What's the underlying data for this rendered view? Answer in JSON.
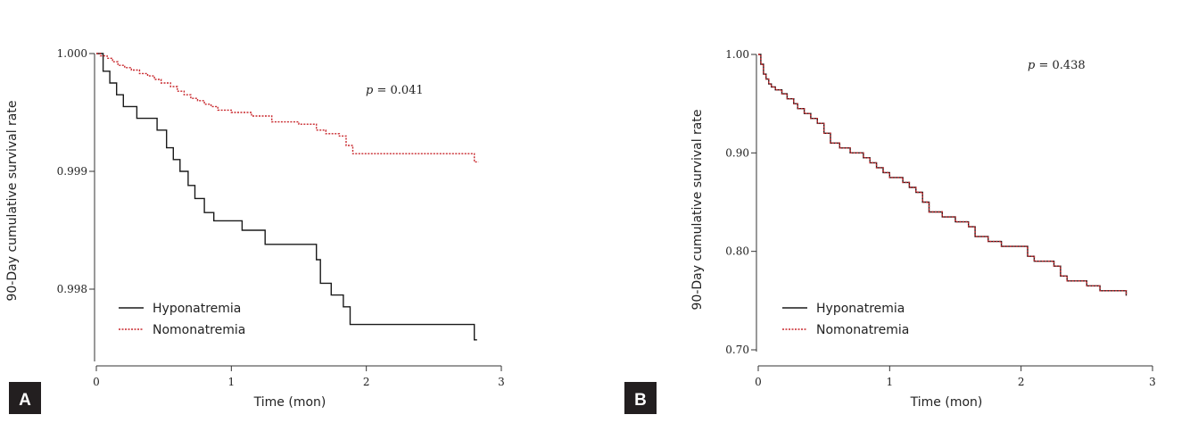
{
  "chart_data": [
    {
      "panel": "A",
      "type": "line",
      "step": true,
      "xlabel": "Time (mon)",
      "ylabel": "90-Day cumulative survival rate",
      "xlim": [
        0,
        3
      ],
      "ylim": [
        0.9975,
        1.0
      ],
      "xticks": [
        "0",
        "1",
        "2",
        "3"
      ],
      "yticks": [
        {
          "v": 1.0,
          "label": "1.000"
        },
        {
          "v": 0.999,
          "label": "0.999"
        },
        {
          "v": 0.998,
          "label": "0.998"
        }
      ],
      "p_value": {
        "prefix": "p",
        "text": " = 0.041"
      },
      "legend_position": "bottom-left",
      "series": [
        {
          "name": "Hyponatremia",
          "style": "solid",
          "color": "#1a1a1a",
          "points": [
            [
              0,
              1.0
            ],
            [
              0.05,
              0.99985
            ],
            [
              0.1,
              0.99975
            ],
            [
              0.15,
              0.99965
            ],
            [
              0.2,
              0.99955
            ],
            [
              0.3,
              0.99945
            ],
            [
              0.45,
              0.99935
            ],
            [
              0.52,
              0.9992
            ],
            [
              0.57,
              0.9991
            ],
            [
              0.62,
              0.999
            ],
            [
              0.68,
              0.99888
            ],
            [
              0.73,
              0.99877
            ],
            [
              0.8,
              0.99865
            ],
            [
              0.87,
              0.99858
            ],
            [
              0.98,
              0.99858
            ],
            [
              1.08,
              0.9985
            ],
            [
              1.25,
              0.99838
            ],
            [
              1.5,
              0.99838
            ],
            [
              1.63,
              0.99825
            ],
            [
              1.66,
              0.99805
            ],
            [
              1.74,
              0.99795
            ],
            [
              1.83,
              0.99785
            ],
            [
              1.88,
              0.9977
            ],
            [
              2.75,
              0.9977
            ],
            [
              2.8,
              0.99757
            ]
          ],
          "end_x": 2.82
        },
        {
          "name": "Nomonatremia",
          "style": "dashed",
          "color": "#c8262b",
          "points": [
            [
              0,
              1.0
            ],
            [
              0.03,
              0.99998
            ],
            [
              0.08,
              0.99996
            ],
            [
              0.12,
              0.99993
            ],
            [
              0.16,
              0.9999
            ],
            [
              0.21,
              0.99988
            ],
            [
              0.26,
              0.99986
            ],
            [
              0.32,
              0.99983
            ],
            [
              0.38,
              0.99981
            ],
            [
              0.43,
              0.99978
            ],
            [
              0.48,
              0.99975
            ],
            [
              0.55,
              0.99972
            ],
            [
              0.6,
              0.99968
            ],
            [
              0.65,
              0.99965
            ],
            [
              0.7,
              0.99962
            ],
            [
              0.75,
              0.9996
            ],
            [
              0.8,
              0.99957
            ],
            [
              0.85,
              0.99955
            ],
            [
              0.9,
              0.99952
            ],
            [
              1.0,
              0.9995
            ],
            [
              1.15,
              0.99947
            ],
            [
              1.3,
              0.99942
            ],
            [
              1.5,
              0.9994
            ],
            [
              1.63,
              0.99935
            ],
            [
              1.7,
              0.99932
            ],
            [
              1.8,
              0.9993
            ],
            [
              1.85,
              0.99922
            ],
            [
              1.9,
              0.99915
            ],
            [
              2.5,
              0.99915
            ],
            [
              2.75,
              0.99915
            ],
            [
              2.8,
              0.99908
            ]
          ],
          "end_x": 2.83
        }
      ]
    },
    {
      "panel": "B",
      "type": "line",
      "step": true,
      "xlabel": "Time (mon)",
      "ylabel": "90-Day cumulative survival rate",
      "xlim": [
        0,
        3
      ],
      "ylim": [
        0.69,
        1.0
      ],
      "xticks": [
        "0",
        "1",
        "2",
        "3"
      ],
      "yticks": [
        {
          "v": 1.0,
          "label": "1.00"
        },
        {
          "v": 0.9,
          "label": "0.90"
        },
        {
          "v": 0.8,
          "label": "0.80"
        },
        {
          "v": 0.7,
          "label": "0.70"
        }
      ],
      "p_value": {
        "prefix": "p",
        "text": " = 0.438"
      },
      "legend_position": "bottom-left",
      "series": [
        {
          "name": "Hyponatremia",
          "style": "solid",
          "color": "#1a1a1a",
          "points": [
            [
              0,
              1.0
            ],
            [
              0.02,
              0.99
            ],
            [
              0.04,
              0.98
            ],
            [
              0.06,
              0.975
            ],
            [
              0.08,
              0.97
            ],
            [
              0.1,
              0.967
            ],
            [
              0.13,
              0.964
            ],
            [
              0.18,
              0.96
            ],
            [
              0.22,
              0.955
            ],
            [
              0.27,
              0.95
            ],
            [
              0.3,
              0.945
            ],
            [
              0.35,
              0.94
            ],
            [
              0.4,
              0.935
            ],
            [
              0.45,
              0.93
            ],
            [
              0.5,
              0.92
            ],
            [
              0.55,
              0.91
            ],
            [
              0.62,
              0.905
            ],
            [
              0.7,
              0.9
            ],
            [
              0.8,
              0.895
            ],
            [
              0.85,
              0.89
            ],
            [
              0.9,
              0.885
            ],
            [
              0.95,
              0.88
            ],
            [
              1.0,
              0.875
            ],
            [
              1.1,
              0.87
            ],
            [
              1.15,
              0.865
            ],
            [
              1.2,
              0.86
            ],
            [
              1.25,
              0.85
            ],
            [
              1.3,
              0.84
            ],
            [
              1.4,
              0.835
            ],
            [
              1.5,
              0.83
            ],
            [
              1.6,
              0.825
            ],
            [
              1.65,
              0.815
            ],
            [
              1.75,
              0.81
            ],
            [
              1.85,
              0.805
            ],
            [
              2.05,
              0.795
            ],
            [
              2.1,
              0.79
            ],
            [
              2.25,
              0.785
            ],
            [
              2.3,
              0.775
            ],
            [
              2.35,
              0.77
            ],
            [
              2.5,
              0.765
            ],
            [
              2.6,
              0.76
            ],
            [
              2.75,
              0.76
            ],
            [
              2.8,
              0.755
            ]
          ],
          "end_x": 2.8
        },
        {
          "name": "Nomonatremia",
          "style": "dashed",
          "color": "#c8262b",
          "points": [
            [
              0,
              1.0
            ],
            [
              0.02,
              0.99
            ],
            [
              0.04,
              0.98
            ],
            [
              0.06,
              0.975
            ],
            [
              0.08,
              0.97
            ],
            [
              0.1,
              0.967
            ],
            [
              0.13,
              0.964
            ],
            [
              0.18,
              0.96
            ],
            [
              0.22,
              0.955
            ],
            [
              0.27,
              0.95
            ],
            [
              0.3,
              0.945
            ],
            [
              0.35,
              0.94
            ],
            [
              0.4,
              0.935
            ],
            [
              0.45,
              0.93
            ],
            [
              0.5,
              0.92
            ],
            [
              0.55,
              0.91
            ],
            [
              0.62,
              0.905
            ],
            [
              0.7,
              0.9
            ],
            [
              0.8,
              0.895
            ],
            [
              0.85,
              0.89
            ],
            [
              0.9,
              0.885
            ],
            [
              0.95,
              0.88
            ],
            [
              1.0,
              0.875
            ],
            [
              1.1,
              0.87
            ],
            [
              1.15,
              0.865
            ],
            [
              1.2,
              0.86
            ],
            [
              1.25,
              0.85
            ],
            [
              1.3,
              0.84
            ],
            [
              1.4,
              0.835
            ],
            [
              1.5,
              0.83
            ],
            [
              1.6,
              0.825
            ],
            [
              1.65,
              0.815
            ],
            [
              1.75,
              0.81
            ],
            [
              1.85,
              0.805
            ],
            [
              2.05,
              0.795
            ],
            [
              2.1,
              0.79
            ],
            [
              2.25,
              0.785
            ],
            [
              2.3,
              0.775
            ],
            [
              2.35,
              0.77
            ],
            [
              2.5,
              0.765
            ],
            [
              2.6,
              0.76
            ],
            [
              2.75,
              0.76
            ],
            [
              2.8,
              0.755
            ]
          ],
          "end_x": 2.8
        }
      ]
    }
  ]
}
